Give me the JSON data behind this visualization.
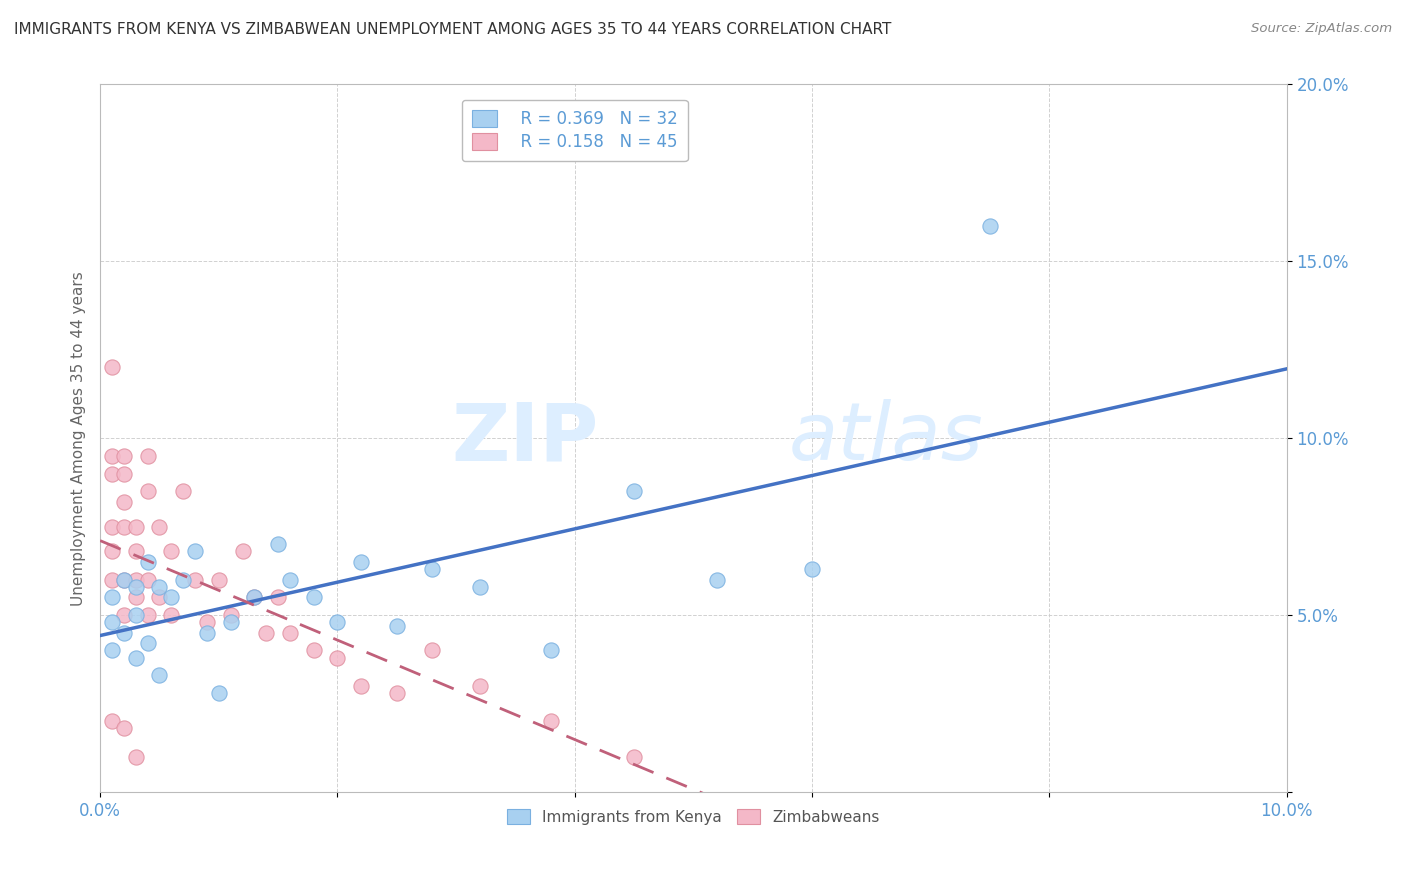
{
  "title": "IMMIGRANTS FROM KENYA VS ZIMBABWEAN UNEMPLOYMENT AMONG AGES 35 TO 44 YEARS CORRELATION CHART",
  "source": "Source: ZipAtlas.com",
  "ylabel": "Unemployment Among Ages 35 to 44 years",
  "xlim": [
    0.0,
    0.1
  ],
  "ylim": [
    0.0,
    0.2
  ],
  "xticks": [
    0.0,
    0.02,
    0.04,
    0.06,
    0.08,
    0.1
  ],
  "xtick_labels": [
    "0.0%",
    "",
    "",
    "",
    "",
    "10.0%"
  ],
  "yticks": [
    0.0,
    0.05,
    0.1,
    0.15,
    0.2
  ],
  "ytick_labels": [
    "",
    "5.0%",
    "10.0%",
    "15.0%",
    "20.0%"
  ],
  "kenya_color": "#A8D0F0",
  "kenya_edge": "#7ab0e0",
  "zimbabwe_color": "#F4B8C8",
  "zimbabwe_edge": "#e090a0",
  "line_kenya_color": "#4472C4",
  "line_zimbabwe_color": "#C0607A",
  "line_zimbabwe_dash": [
    8,
    5
  ],
  "watermark_zip": "ZIP",
  "watermark_atlas": "atlas",
  "legend_R_kenya": "R = 0.369",
  "legend_N_kenya": "N = 32",
  "legend_R_zimbabwe": "R = 0.158",
  "legend_N_zimbabwe": "N = 45",
  "kenya_x": [
    0.001,
    0.001,
    0.001,
    0.002,
    0.002,
    0.003,
    0.003,
    0.003,
    0.004,
    0.004,
    0.005,
    0.005,
    0.006,
    0.007,
    0.008,
    0.009,
    0.01,
    0.011,
    0.013,
    0.015,
    0.016,
    0.018,
    0.02,
    0.022,
    0.025,
    0.028,
    0.032,
    0.038,
    0.045,
    0.052,
    0.06,
    0.075
  ],
  "kenya_y": [
    0.055,
    0.048,
    0.04,
    0.06,
    0.045,
    0.058,
    0.05,
    0.038,
    0.065,
    0.042,
    0.058,
    0.033,
    0.055,
    0.06,
    0.068,
    0.045,
    0.028,
    0.048,
    0.055,
    0.07,
    0.06,
    0.055,
    0.048,
    0.065,
    0.047,
    0.063,
    0.058,
    0.04,
    0.085,
    0.06,
    0.063,
    0.16
  ],
  "zimbabwe_x": [
    0.001,
    0.001,
    0.001,
    0.001,
    0.001,
    0.001,
    0.001,
    0.002,
    0.002,
    0.002,
    0.002,
    0.002,
    0.002,
    0.002,
    0.003,
    0.003,
    0.003,
    0.003,
    0.003,
    0.004,
    0.004,
    0.004,
    0.004,
    0.005,
    0.005,
    0.006,
    0.006,
    0.007,
    0.008,
    0.009,
    0.01,
    0.011,
    0.012,
    0.013,
    0.014,
    0.015,
    0.016,
    0.018,
    0.02,
    0.022,
    0.025,
    0.028,
    0.032,
    0.038,
    0.045
  ],
  "zimbabwe_y": [
    0.12,
    0.095,
    0.09,
    0.075,
    0.068,
    0.06,
    0.02,
    0.095,
    0.09,
    0.082,
    0.075,
    0.06,
    0.05,
    0.018,
    0.075,
    0.068,
    0.06,
    0.055,
    0.01,
    0.095,
    0.085,
    0.06,
    0.05,
    0.075,
    0.055,
    0.068,
    0.05,
    0.085,
    0.06,
    0.048,
    0.06,
    0.05,
    0.068,
    0.055,
    0.045,
    0.055,
    0.045,
    0.04,
    0.038,
    0.03,
    0.028,
    0.04,
    0.03,
    0.02,
    0.01
  ],
  "background_color": "#FFFFFF",
  "grid_color": "#CCCCCC",
  "tick_color": "#5B9BD5",
  "ylabel_color": "#666666",
  "title_color": "#333333",
  "source_color": "#888888"
}
